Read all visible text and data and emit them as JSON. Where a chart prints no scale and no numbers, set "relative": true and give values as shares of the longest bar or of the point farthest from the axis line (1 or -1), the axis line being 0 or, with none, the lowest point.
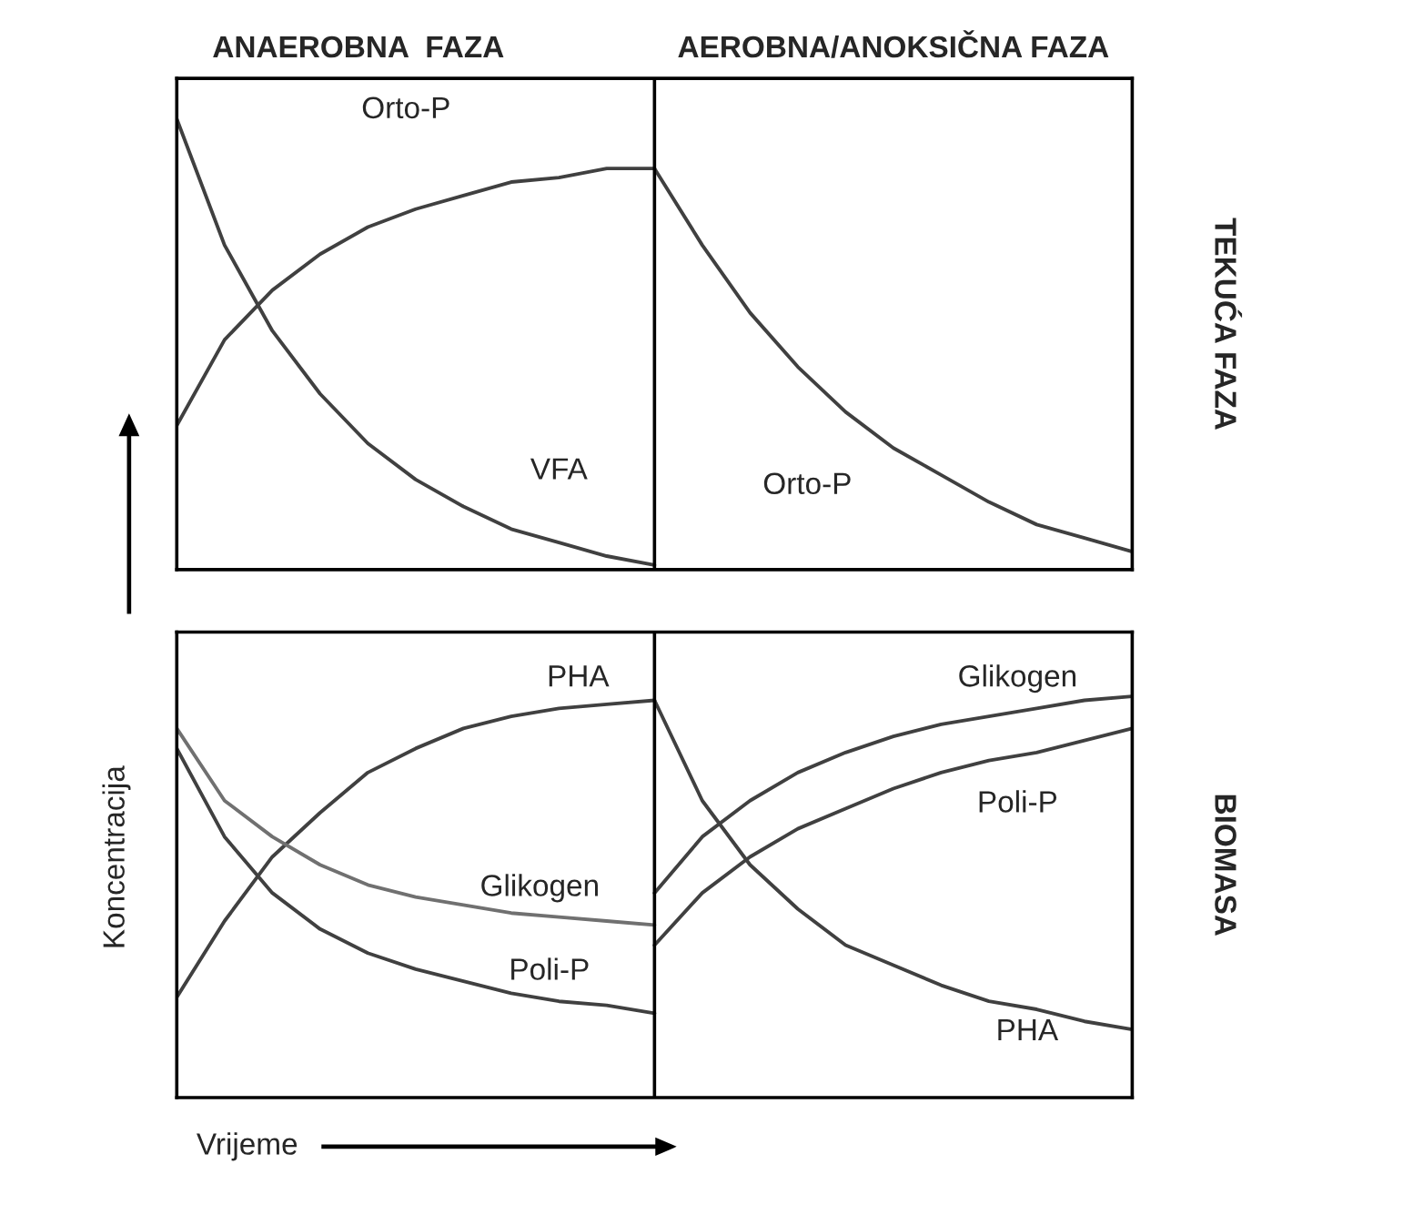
{
  "chart_data": [
    {
      "type": "line",
      "relative": true,
      "categories": [
        null,
        null,
        null,
        null,
        null,
        null,
        null,
        null,
        null,
        null,
        null,
        null,
        null,
        null,
        null,
        null,
        null,
        null,
        null,
        null,
        null
      ],
      "annotations": [
        "ANAEROBNA  FAZA",
        "AEROBNA/ANOKSIČNA FAZA",
        "TEKUĆA FAZA"
      ],
      "series": [
        {
          "name": "Orto-P",
          "color": "#404040",
          "values": [
            0.32,
            0.51,
            0.62,
            0.7,
            0.76,
            0.8,
            0.83,
            0.86,
            0.87,
            0.89,
            0.89,
            null,
            null,
            null,
            null,
            null,
            null,
            null,
            null,
            null,
            null
          ]
        },
        {
          "name": "VFA",
          "color": "#404040",
          "values": [
            1.0,
            0.72,
            0.53,
            0.39,
            0.28,
            0.2,
            0.14,
            0.09,
            0.06,
            0.03,
            0.01,
            null,
            null,
            null,
            null,
            null,
            null,
            null,
            null,
            null,
            null
          ]
        },
        {
          "name": "Orto-P",
          "color": "#404040",
          "values": [
            null,
            null,
            null,
            null,
            null,
            null,
            null,
            null,
            null,
            null,
            0.89,
            0.72,
            0.57,
            0.45,
            0.35,
            0.27,
            0.21,
            0.15,
            0.1,
            0.07,
            0.04
          ]
        }
      ]
    },
    {
      "type": "line",
      "relative": true,
      "categories": [
        null,
        null,
        null,
        null,
        null,
        null,
        null,
        null,
        null,
        null,
        null,
        null,
        null,
        null,
        null,
        null,
        null,
        null,
        null,
        null,
        null
      ],
      "xlabel": "Vrijeme",
      "ylabel": "Koncentracija",
      "annotations": [
        "BIOMASA"
      ],
      "series": [
        {
          "name": "PHA",
          "color": "#404040",
          "values": [
            0.25,
            0.44,
            0.6,
            0.71,
            0.81,
            0.87,
            0.92,
            0.95,
            0.97,
            0.98,
            0.99,
            null,
            null,
            null,
            null,
            null,
            null,
            null,
            null,
            null,
            null
          ]
        },
        {
          "name": "Glikogen",
          "color": "#707070",
          "values": [
            0.92,
            0.74,
            0.65,
            0.58,
            0.53,
            0.5,
            0.48,
            0.46,
            0.45,
            0.44,
            0.43,
            null,
            null,
            null,
            null,
            null,
            null,
            null,
            null,
            null,
            null
          ]
        },
        {
          "name": "Poli-P",
          "color": "#404040",
          "values": [
            0.87,
            0.65,
            0.51,
            0.42,
            0.36,
            0.32,
            0.29,
            0.26,
            0.24,
            0.23,
            0.21,
            null,
            null,
            null,
            null,
            null,
            null,
            null,
            null,
            null,
            null
          ]
        },
        {
          "name": "Glikogen",
          "color": "#404040",
          "values": [
            null,
            null,
            null,
            null,
            null,
            null,
            null,
            null,
            null,
            null,
            0.51,
            0.65,
            0.74,
            0.81,
            0.86,
            0.9,
            0.93,
            0.95,
            0.97,
            0.99,
            1.0
          ]
        },
        {
          "name": "Poli-P",
          "color": "#404040",
          "values": [
            null,
            null,
            null,
            null,
            null,
            null,
            null,
            null,
            null,
            null,
            0.38,
            0.51,
            0.6,
            0.67,
            0.72,
            0.77,
            0.81,
            0.84,
            0.86,
            0.89,
            0.92
          ]
        },
        {
          "name": "PHA",
          "color": "#404040",
          "values": [
            null,
            null,
            null,
            null,
            null,
            null,
            null,
            null,
            null,
            null,
            0.99,
            0.74,
            0.58,
            0.47,
            0.38,
            0.33,
            0.28,
            0.24,
            0.22,
            0.19,
            0.17
          ]
        }
      ]
    }
  ]
}
